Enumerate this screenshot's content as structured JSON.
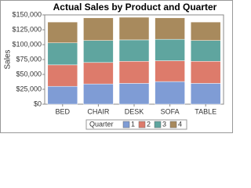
{
  "chart_data": {
    "type": "stacked_bar",
    "title": "Actual Sales by Product and Quarter",
    "y_label": "Sales",
    "legend_title": "Quarter",
    "categories": [
      "BED",
      "CHAIR",
      "DESK",
      "SOFA",
      "TABLE"
    ],
    "series": [
      {
        "name": "1",
        "color": "#7f9cd5",
        "values": [
          30000,
          34000,
          35000,
          38000,
          35000
        ]
      },
      {
        "name": "2",
        "color": "#dd7b6b",
        "values": [
          36000,
          36000,
          37000,
          35000,
          37000
        ]
      },
      {
        "name": "3",
        "color": "#5fa59f",
        "values": [
          37000,
          37000,
          36000,
          36000,
          35000
        ]
      },
      {
        "name": "4",
        "color": "#a88a5d",
        "values": [
          35000,
          38000,
          38000,
          36000,
          31000
        ]
      }
    ],
    "ylim": [
      0,
      150000
    ],
    "yticks": [
      {
        "value": 0,
        "label": "$0"
      },
      {
        "value": 25000,
        "label": "$25,000"
      },
      {
        "value": 50000,
        "label": "$50,000"
      },
      {
        "value": 75000,
        "label": "$75,000"
      },
      {
        "value": 100000,
        "label": "$100,000"
      },
      {
        "value": 125000,
        "label": "$125,000"
      },
      {
        "value": 150000,
        "label": "$150,000"
      }
    ],
    "legend_position": "bottom"
  }
}
